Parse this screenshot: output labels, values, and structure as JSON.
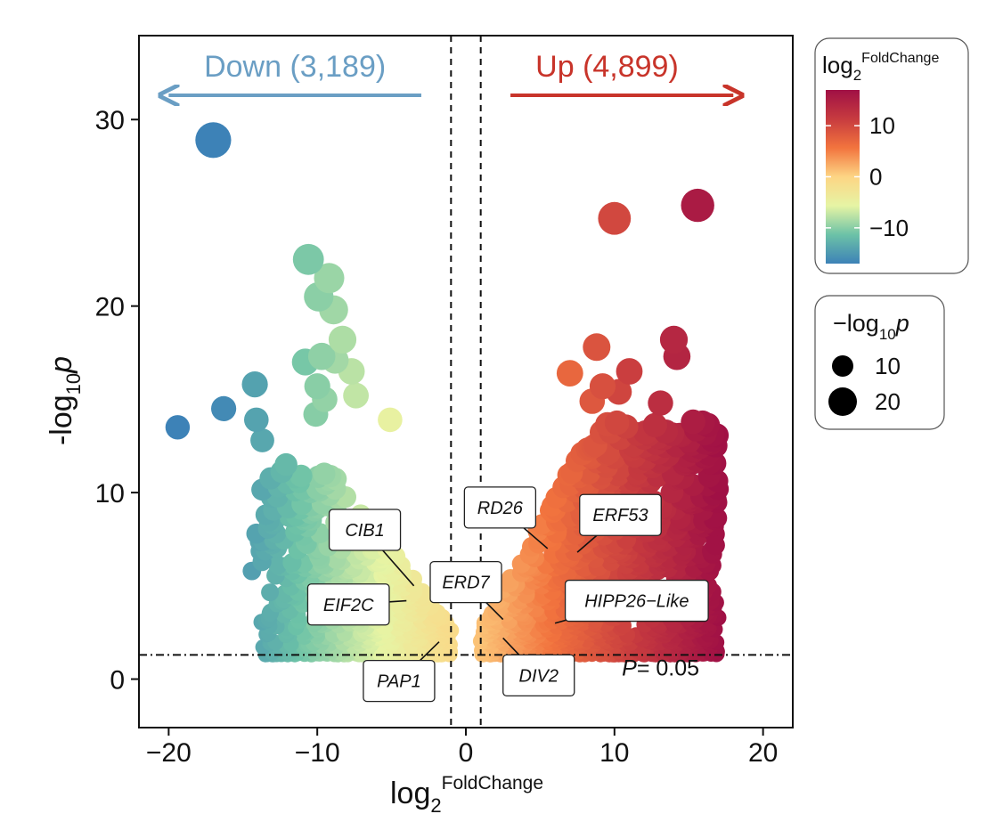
{
  "chart_data": {
    "type": "scatter",
    "title": "",
    "xlabel": "log",
    "xlabel_sub": "2",
    "xlabel_sup": "FoldChange",
    "ylabel": "-log",
    "ylabel_sub": "10",
    "ylabel_var": "p",
    "xlim": [
      -22,
      22
    ],
    "ylim": [
      -2.6,
      34.5
    ],
    "x_ticks": [
      -20,
      -10,
      0,
      10,
      20
    ],
    "x_tick_labels": [
      "−20",
      "−10",
      "0",
      "10",
      "20"
    ],
    "y_ticks": [
      0,
      10,
      20,
      30
    ],
    "y_tick_labels": [
      "0",
      "10",
      "20",
      "30"
    ],
    "grid": false,
    "thresholds": {
      "fc": [
        -1,
        1
      ],
      "p_line": 1.3,
      "p_label_prefix": "P",
      "p_label_value": "= 0.05"
    },
    "annotations": {
      "down": {
        "text": "Down (3,189)",
        "color": "#6a9ec4",
        "arrow": [
          -3,
          -20
        ]
      },
      "up": {
        "text": "Up (4,899)",
        "color": "#c8342a",
        "arrow": [
          3,
          18
        ]
      }
    },
    "gene_labels": [
      {
        "name": "CIB1",
        "x": -6.8,
        "y": 8.0,
        "target": [
          -3.5,
          5.0
        ]
      },
      {
        "name": "EIF2C",
        "x": -7.9,
        "y": 4.0,
        "target": [
          -4.0,
          4.2
        ]
      },
      {
        "name": "PAP1",
        "x": -4.5,
        "y": -0.1,
        "target": [
          -1.8,
          2.0
        ]
      },
      {
        "name": "ERD7",
        "x": 0.0,
        "y": 5.2,
        "target": [
          2.5,
          3.2
        ]
      },
      {
        "name": "RD26",
        "x": 2.3,
        "y": 9.2,
        "target": [
          5.5,
          7.0
        ]
      },
      {
        "name": "ERF53",
        "x": 10.4,
        "y": 8.8,
        "target": [
          7.5,
          6.8
        ]
      },
      {
        "name": "HIPP26−Like",
        "x": 11.5,
        "y": 4.2,
        "target": [
          6.0,
          3.0
        ]
      },
      {
        "name": "DIV2",
        "x": 4.9,
        "y": 0.2,
        "target": [
          2.5,
          2.2
        ]
      }
    ],
    "highlight_points": [
      {
        "x": -17.0,
        "y": 28.9
      },
      {
        "x": -19.4,
        "y": 13.5
      },
      {
        "x": -16.3,
        "y": 14.5
      },
      {
        "x": -14.2,
        "y": 15.8
      },
      {
        "x": -14.1,
        "y": 13.9
      },
      {
        "x": -13.7,
        "y": 12.8
      },
      {
        "x": -10.6,
        "y": 22.5
      },
      {
        "x": -9.2,
        "y": 21.5
      },
      {
        "x": -9.9,
        "y": 20.5
      },
      {
        "x": -8.9,
        "y": 19.8
      },
      {
        "x": -8.3,
        "y": 18.2
      },
      {
        "x": -10.8,
        "y": 17.0
      },
      {
        "x": -9.7,
        "y": 17.3
      },
      {
        "x": -8.8,
        "y": 17.1
      },
      {
        "x": -7.7,
        "y": 16.5
      },
      {
        "x": -10.0,
        "y": 15.7
      },
      {
        "x": -7.4,
        "y": 15.2
      },
      {
        "x": -9.5,
        "y": 15.0
      },
      {
        "x": -10.1,
        "y": 14.2
      },
      {
        "x": -5.1,
        "y": 13.9
      },
      {
        "x": -12.1,
        "y": 11.5
      },
      {
        "x": -12.6,
        "y": 10.3
      },
      {
        "x": -12.0,
        "y": 10.5
      },
      {
        "x": -10.0,
        "y": 10.2
      },
      {
        "x": -8.6,
        "y": 9.7
      },
      {
        "x": -14.4,
        "y": 5.8
      },
      {
        "x": -14.1,
        "y": 7.8
      },
      {
        "x": -13.0,
        "y": 8.3
      },
      {
        "x": 10.0,
        "y": 24.7
      },
      {
        "x": 15.6,
        "y": 25.4
      },
      {
        "x": 14.0,
        "y": 18.2
      },
      {
        "x": 14.2,
        "y": 17.3
      },
      {
        "x": 8.8,
        "y": 17.8
      },
      {
        "x": 7.0,
        "y": 16.4
      },
      {
        "x": 11.0,
        "y": 16.5
      },
      {
        "x": 10.3,
        "y": 15.4
      },
      {
        "x": 9.2,
        "y": 15.7
      },
      {
        "x": 8.5,
        "y": 14.9
      },
      {
        "x": 13.1,
        "y": 14.8
      },
      {
        "x": 14.4,
        "y": 13.1
      },
      {
        "x": 15.2,
        "y": 12.6
      },
      {
        "x": 16.0,
        "y": 12.0
      },
      {
        "x": 11.1,
        "y": 12.3
      },
      {
        "x": 12.3,
        "y": 11.6
      },
      {
        "x": 15.3,
        "y": 10.4
      },
      {
        "x": 16.1,
        "y": 8.3
      },
      {
        "x": 16.6,
        "y": 6.7
      },
      {
        "x": 15.0,
        "y": 2.5
      }
    ],
    "cloud_regions": {
      "down": {
        "x_range": [
          -14,
          -1
        ],
        "y_floor": 1.3,
        "count": 720
      },
      "up": {
        "x_range": [
          1,
          17
        ],
        "y_floor": 1.3,
        "count": 1100
      }
    },
    "color_scale": {
      "min": -17,
      "max": 17,
      "stops": [
        "#3d82b7",
        "#6cc2a7",
        "#e6f4a4",
        "#fdd584",
        "#f2743e",
        "#c73b3f",
        "#a01045"
      ]
    },
    "legend_color": {
      "title": "log",
      "title_sub": "2",
      "title_sup": "FoldChange",
      "ticks": [
        10,
        0,
        -10
      ],
      "tick_labels": [
        "10",
        "0",
        "−10"
      ]
    },
    "legend_size": {
      "title": "−log",
      "title_sub": "10",
      "title_var": "p",
      "entries": [
        {
          "value": 10,
          "label": "10"
        },
        {
          "value": 20,
          "label": "20"
        }
      ]
    }
  }
}
